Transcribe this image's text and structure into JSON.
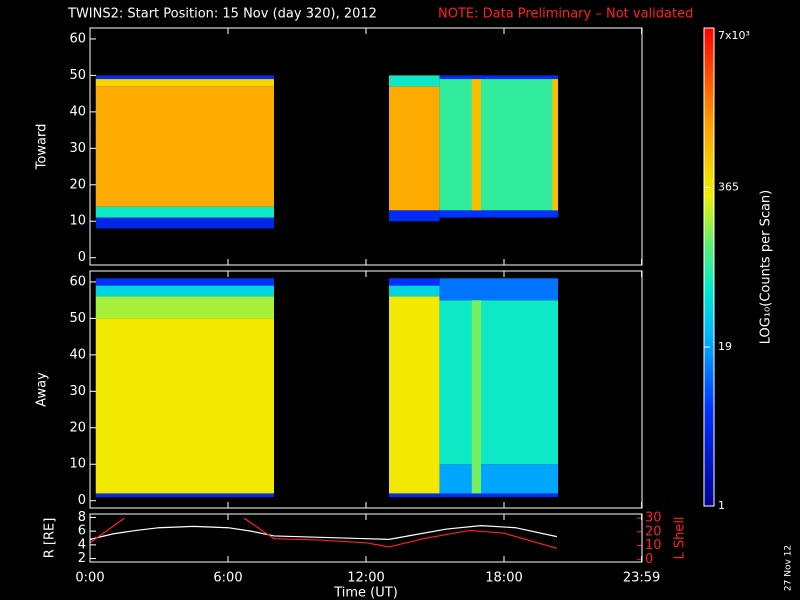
{
  "title": "TWINS2: Start Position: 15 Nov (day 320), 2012",
  "note": "NOTE: Data Preliminary – Not validated",
  "date_stamp": "27 Nov 12",
  "colorbar": {
    "label": "LOG₁₀(Counts per Scan)",
    "zlim": [
      1,
      7000
    ],
    "log": true,
    "ticks": [
      {
        "value": 7000,
        "label": "7x10³"
      },
      365,
      19,
      1
    ]
  },
  "chart_data": [
    {
      "type": "spectrogram",
      "ylabel": "Toward",
      "xlim": [
        0,
        24
      ],
      "ylim": [
        -2,
        63
      ],
      "yticks": [
        0,
        10,
        20,
        30,
        40,
        50,
        60
      ],
      "cells": [
        {
          "x": [
            0.25,
            8
          ],
          "y": [
            8,
            11
          ],
          "value": 4
        },
        {
          "x": [
            0.25,
            8
          ],
          "y": [
            11,
            14
          ],
          "value": 60
        },
        {
          "x": [
            0.25,
            8
          ],
          "y": [
            14,
            47
          ],
          "value": 1000
        },
        {
          "x": [
            0.25,
            8
          ],
          "y": [
            47,
            49
          ],
          "value": 500
        },
        {
          "x": [
            0.25,
            8
          ],
          "y": [
            49,
            50
          ],
          "value": 5
        },
        {
          "x": [
            13,
            15.2
          ],
          "y": [
            10,
            13
          ],
          "value": 5
        },
        {
          "x": [
            13,
            15.2
          ],
          "y": [
            13,
            47
          ],
          "value": 1000
        },
        {
          "x": [
            13,
            15.2
          ],
          "y": [
            47,
            50
          ],
          "value": 60
        },
        {
          "x": [
            15.2,
            20.35
          ],
          "y": [
            11,
            13
          ],
          "value": 6
        },
        {
          "x": [
            15.2,
            20.35
          ],
          "y": [
            13,
            49
          ],
          "value": 85
        },
        {
          "x": [
            16.6,
            17
          ],
          "y": [
            13,
            49
          ],
          "value": 700
        },
        {
          "x": [
            20.1,
            20.35
          ],
          "y": [
            13,
            49
          ],
          "value": 700
        },
        {
          "x": [
            15.2,
            20.35
          ],
          "y": [
            49,
            50
          ],
          "value": 5
        }
      ]
    },
    {
      "type": "spectrogram",
      "ylabel": "Away",
      "xlim": [
        0,
        24
      ],
      "ylim": [
        -2,
        63
      ],
      "yticks": [
        0,
        10,
        20,
        30,
        40,
        50,
        60
      ],
      "cells": [
        {
          "x": [
            0.25,
            8
          ],
          "y": [
            1,
            2
          ],
          "value": 5
        },
        {
          "x": [
            0.25,
            8
          ],
          "y": [
            2,
            50
          ],
          "value": 350
        },
        {
          "x": [
            0.25,
            8
          ],
          "y": [
            50,
            56
          ],
          "value": 200
        },
        {
          "x": [
            0.25,
            8
          ],
          "y": [
            56,
            59
          ],
          "value": 40
        },
        {
          "x": [
            0.25,
            8
          ],
          "y": [
            59,
            61
          ],
          "value": 6
        },
        {
          "x": [
            13,
            15.2
          ],
          "y": [
            1,
            2
          ],
          "value": 5
        },
        {
          "x": [
            13,
            15.2
          ],
          "y": [
            2,
            56
          ],
          "value": 350
        },
        {
          "x": [
            13,
            15.2
          ],
          "y": [
            56,
            59
          ],
          "value": 40
        },
        {
          "x": [
            13,
            15.2
          ],
          "y": [
            59,
            61
          ],
          "value": 6
        },
        {
          "x": [
            15.2,
            20.35
          ],
          "y": [
            1,
            2
          ],
          "value": 5
        },
        {
          "x": [
            15.2,
            20.35
          ],
          "y": [
            2,
            10
          ],
          "value": 20
        },
        {
          "x": [
            15.2,
            20.35
          ],
          "y": [
            10,
            55
          ],
          "value": 60
        },
        {
          "x": [
            16.6,
            17
          ],
          "y": [
            2,
            55
          ],
          "value": 150
        },
        {
          "x": [
            15.2,
            20.35
          ],
          "y": [
            55,
            61
          ],
          "value": 12
        }
      ]
    },
    {
      "type": "line",
      "xlabel": "Time (UT)",
      "ylabel": "R [RE]",
      "y2label": "L Shell",
      "xlim": [
        0,
        24
      ],
      "xticks": [
        {
          "value": 0,
          "label": "0:00"
        },
        {
          "value": 6,
          "label": "6:00"
        },
        {
          "value": 12,
          "label": "12:00"
        },
        {
          "value": 18,
          "label": "18:00"
        },
        {
          "value": 23.983,
          "label": "23:59"
        }
      ],
      "ylim": [
        1.5,
        8.5
      ],
      "yticks": [
        2,
        4,
        6,
        8
      ],
      "y2lim": [
        -2,
        33
      ],
      "y2ticks": [
        0,
        10,
        20,
        30
      ],
      "series": [
        {
          "color": "#ffffff",
          "x": [
            0,
            1,
            2,
            3,
            4.5,
            6,
            7,
            8,
            10,
            12,
            13,
            14,
            15.5,
            17,
            18.5,
            20.3
          ],
          "values": [
            4.8,
            5.6,
            6.1,
            6.5,
            6.7,
            6.5,
            6.0,
            5.3,
            5.1,
            4.9,
            4.8,
            5.4,
            6.3,
            6.8,
            6.5,
            5.2
          ]
        },
        {
          "color": "#ff2020",
          "axis": "y2",
          "x": [
            0,
            1.5,
            4,
            6.7,
            8,
            10,
            12,
            13,
            14.5,
            16.5,
            18,
            20.3
          ],
          "values": [
            12,
            30,
            null,
            30,
            15,
            14,
            12,
            9,
            15,
            21,
            19,
            8
          ]
        }
      ]
    }
  ]
}
